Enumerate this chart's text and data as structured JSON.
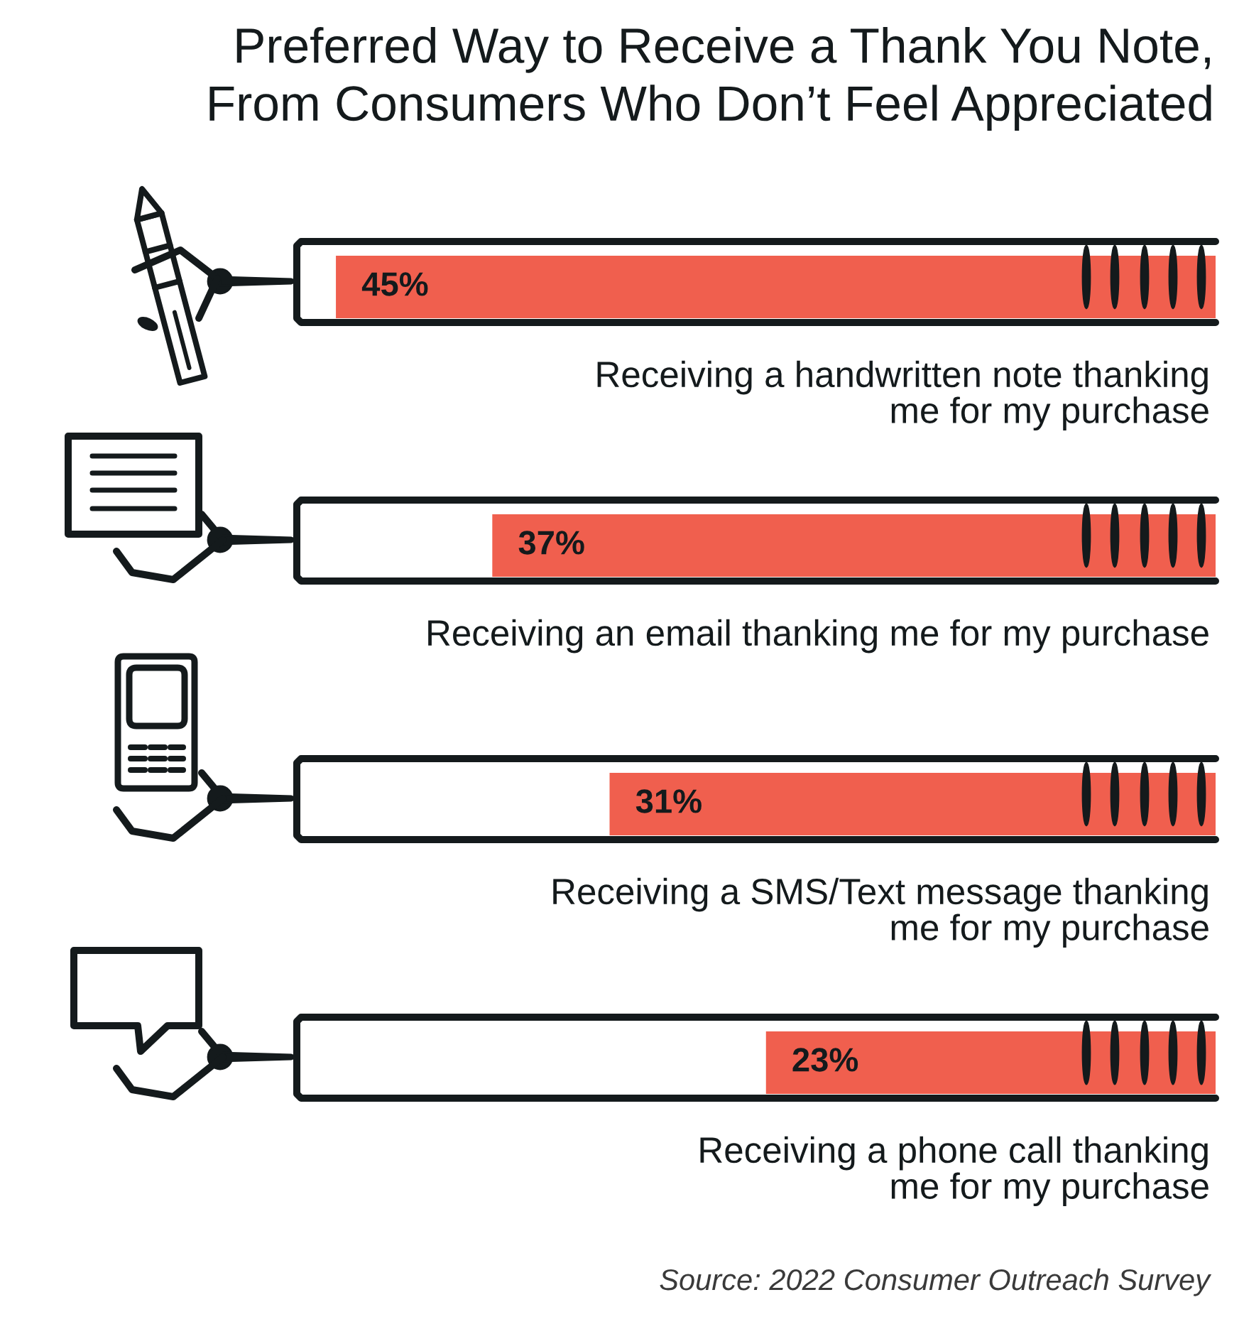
{
  "chart_data": {
    "type": "bar",
    "orientation": "horizontal",
    "title": "Preferred Way to Receive a Thank You Note,\nFrom Consumers Who Don’t Feel Appreciated",
    "categories": [
      "Receiving a handwritten note thanking\nme for my purchase",
      "Receiving an email thanking me for my purchase",
      "Receiving a SMS/Text message thanking\nme for my purchase",
      "Receiving a phone call thanking\nme for my purchase"
    ],
    "values": [
      45,
      37,
      31,
      23
    ],
    "value_labels": [
      "45%",
      "37%",
      "31%",
      "23%"
    ],
    "color": "#f05f4e",
    "xlim": [
      47,
      0
    ],
    "tick_labels": "y",
    "annotations": [
      "Source: 2022 Consumer Outreach Survey"
    ]
  }
}
